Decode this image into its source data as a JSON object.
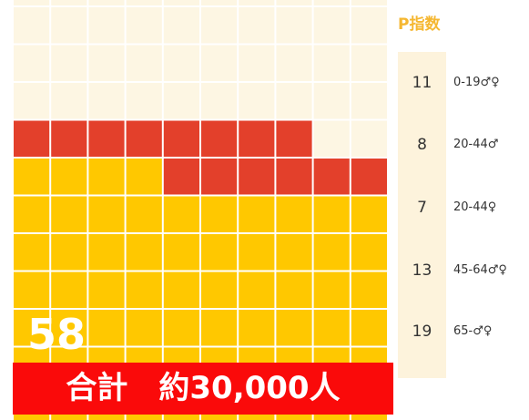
{
  "header": {
    "title": "P指数"
  },
  "items": [
    {
      "value": 11,
      "label": "0-19♂♀"
    },
    {
      "value": 8,
      "label": "20-44♂"
    },
    {
      "value": 7,
      "label": "20-44♀"
    },
    {
      "value": 13,
      "label": "45-64♂♀"
    },
    {
      "value": 19,
      "label": "65-♂♀"
    }
  ],
  "big_number": 58,
  "total": "合計　約30,000人"
}
